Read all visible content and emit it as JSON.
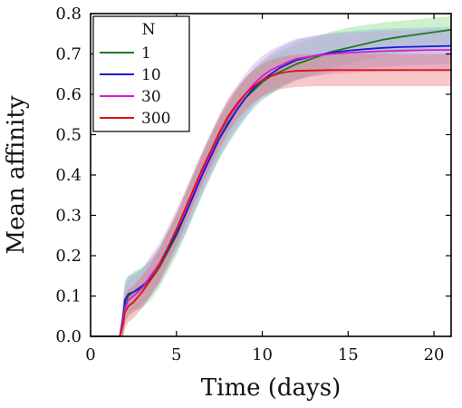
{
  "chart_data": {
    "type": "line",
    "title": "",
    "xlabel": "Time (days)",
    "ylabel": "Mean affinity",
    "xlim": [
      0,
      21
    ],
    "ylim": [
      0,
      0.8
    ],
    "xticks": [
      0,
      5,
      10,
      15,
      20
    ],
    "yticks": [
      0.0,
      0.1,
      0.2,
      0.3,
      0.4,
      0.5,
      0.6,
      0.7,
      0.8
    ],
    "xtick_labels": [
      "0",
      "5",
      "10",
      "15",
      "20"
    ],
    "ytick_labels": [
      "0.0",
      "0.1",
      "0.2",
      "0.3",
      "0.4",
      "0.5",
      "0.6",
      "0.7",
      "0.8"
    ],
    "grid": false,
    "legend": {
      "title": "N",
      "placement": "top-left"
    },
    "x": [
      0,
      1.7,
      1.9,
      2.0,
      2.2,
      2.5,
      3,
      3.5,
      4,
      4.5,
      5,
      5.5,
      6,
      6.5,
      7,
      7.5,
      8,
      8.5,
      9,
      9.5,
      10,
      10.5,
      11,
      11.5,
      12,
      13,
      14,
      15,
      16,
      17,
      18,
      19,
      20,
      21
    ],
    "series": [
      {
        "name": "1",
        "color": "#1e7a1e",
        "band_color": "#6cd66c",
        "values": [
          0,
          0,
          0.04,
          0.08,
          0.1,
          0.11,
          0.12,
          0.14,
          0.17,
          0.21,
          0.25,
          0.3,
          0.35,
          0.4,
          0.45,
          0.49,
          0.53,
          0.56,
          0.59,
          0.61,
          0.63,
          0.645,
          0.655,
          0.665,
          0.675,
          0.69,
          0.705,
          0.715,
          0.725,
          0.735,
          0.742,
          0.748,
          0.754,
          0.76
        ],
        "lower": [
          0,
          0,
          0.0,
          0.03,
          0.05,
          0.06,
          0.07,
          0.09,
          0.12,
          0.16,
          0.2,
          0.25,
          0.3,
          0.35,
          0.4,
          0.44,
          0.48,
          0.51,
          0.54,
          0.57,
          0.59,
          0.6,
          0.615,
          0.625,
          0.635,
          0.65,
          0.665,
          0.675,
          0.685,
          0.695,
          0.702,
          0.708,
          0.714,
          0.72
        ],
        "upper": [
          0,
          0,
          0.09,
          0.13,
          0.15,
          0.16,
          0.17,
          0.19,
          0.22,
          0.26,
          0.3,
          0.35,
          0.4,
          0.45,
          0.5,
          0.54,
          0.58,
          0.61,
          0.64,
          0.66,
          0.68,
          0.695,
          0.705,
          0.715,
          0.725,
          0.74,
          0.755,
          0.765,
          0.772,
          0.778,
          0.782,
          0.786,
          0.79,
          0.793
        ]
      },
      {
        "name": "10",
        "color": "#1a1ad6",
        "band_color": "#7fb0e0",
        "values": [
          0,
          0,
          0.05,
          0.09,
          0.105,
          0.11,
          0.125,
          0.145,
          0.175,
          0.215,
          0.255,
          0.3,
          0.35,
          0.4,
          0.445,
          0.49,
          0.525,
          0.56,
          0.59,
          0.615,
          0.635,
          0.65,
          0.665,
          0.675,
          0.685,
          0.695,
          0.703,
          0.708,
          0.712,
          0.715,
          0.717,
          0.718,
          0.719,
          0.72
        ],
        "lower": [
          0,
          0,
          0.0,
          0.04,
          0.06,
          0.065,
          0.08,
          0.1,
          0.13,
          0.17,
          0.21,
          0.25,
          0.3,
          0.35,
          0.395,
          0.44,
          0.475,
          0.51,
          0.54,
          0.565,
          0.585,
          0.6,
          0.615,
          0.625,
          0.635,
          0.645,
          0.655,
          0.66,
          0.665,
          0.668,
          0.67,
          0.672,
          0.674,
          0.675
        ],
        "upper": [
          0,
          0,
          0.1,
          0.14,
          0.15,
          0.155,
          0.17,
          0.19,
          0.22,
          0.26,
          0.3,
          0.35,
          0.4,
          0.45,
          0.495,
          0.54,
          0.575,
          0.61,
          0.64,
          0.665,
          0.685,
          0.7,
          0.715,
          0.725,
          0.735,
          0.745,
          0.752,
          0.756,
          0.76,
          0.762,
          0.764,
          0.765,
          0.766,
          0.767
        ]
      },
      {
        "name": "30",
        "color": "#d61ad6",
        "band_color": "#c890e0",
        "values": [
          0,
          0,
          0.04,
          0.07,
          0.09,
          0.1,
          0.12,
          0.15,
          0.18,
          0.22,
          0.265,
          0.31,
          0.36,
          0.41,
          0.455,
          0.5,
          0.54,
          0.57,
          0.6,
          0.625,
          0.645,
          0.66,
          0.67,
          0.68,
          0.688,
          0.695,
          0.7,
          0.703,
          0.705,
          0.707,
          0.708,
          0.709,
          0.71,
          0.71
        ],
        "lower": [
          0,
          0,
          0.0,
          0.03,
          0.05,
          0.06,
          0.075,
          0.1,
          0.13,
          0.17,
          0.215,
          0.26,
          0.31,
          0.36,
          0.405,
          0.45,
          0.49,
          0.52,
          0.55,
          0.575,
          0.595,
          0.61,
          0.62,
          0.63,
          0.638,
          0.645,
          0.65,
          0.653,
          0.655,
          0.657,
          0.658,
          0.659,
          0.66,
          0.66
        ],
        "upper": [
          0,
          0,
          0.09,
          0.12,
          0.14,
          0.15,
          0.165,
          0.2,
          0.23,
          0.27,
          0.315,
          0.36,
          0.41,
          0.46,
          0.505,
          0.55,
          0.59,
          0.62,
          0.65,
          0.675,
          0.695,
          0.71,
          0.72,
          0.73,
          0.738,
          0.745,
          0.75,
          0.753,
          0.755,
          0.757,
          0.758,
          0.759,
          0.76,
          0.76
        ]
      },
      {
        "name": "300",
        "color": "#e01010",
        "band_color": "#e86060",
        "values": [
          0,
          0,
          0.03,
          0.06,
          0.075,
          0.085,
          0.11,
          0.14,
          0.175,
          0.22,
          0.265,
          0.315,
          0.365,
          0.415,
          0.46,
          0.505,
          0.545,
          0.575,
          0.6,
          0.62,
          0.635,
          0.645,
          0.652,
          0.656,
          0.658,
          0.659,
          0.66,
          0.66,
          0.66,
          0.66,
          0.66,
          0.66,
          0.66,
          0.66
        ],
        "lower": [
          0,
          0,
          0.0,
          0.02,
          0.035,
          0.045,
          0.07,
          0.1,
          0.135,
          0.18,
          0.225,
          0.275,
          0.325,
          0.375,
          0.42,
          0.465,
          0.505,
          0.535,
          0.56,
          0.58,
          0.595,
          0.605,
          0.612,
          0.616,
          0.618,
          0.62,
          0.62,
          0.62,
          0.62,
          0.62,
          0.62,
          0.62,
          0.62,
          0.62
        ],
        "upper": [
          0,
          0,
          0.07,
          0.1,
          0.115,
          0.125,
          0.15,
          0.18,
          0.215,
          0.26,
          0.305,
          0.355,
          0.405,
          0.455,
          0.5,
          0.545,
          0.585,
          0.615,
          0.64,
          0.66,
          0.675,
          0.685,
          0.692,
          0.696,
          0.698,
          0.699,
          0.7,
          0.7,
          0.7,
          0.7,
          0.7,
          0.7,
          0.7,
          0.7
        ]
      }
    ]
  }
}
